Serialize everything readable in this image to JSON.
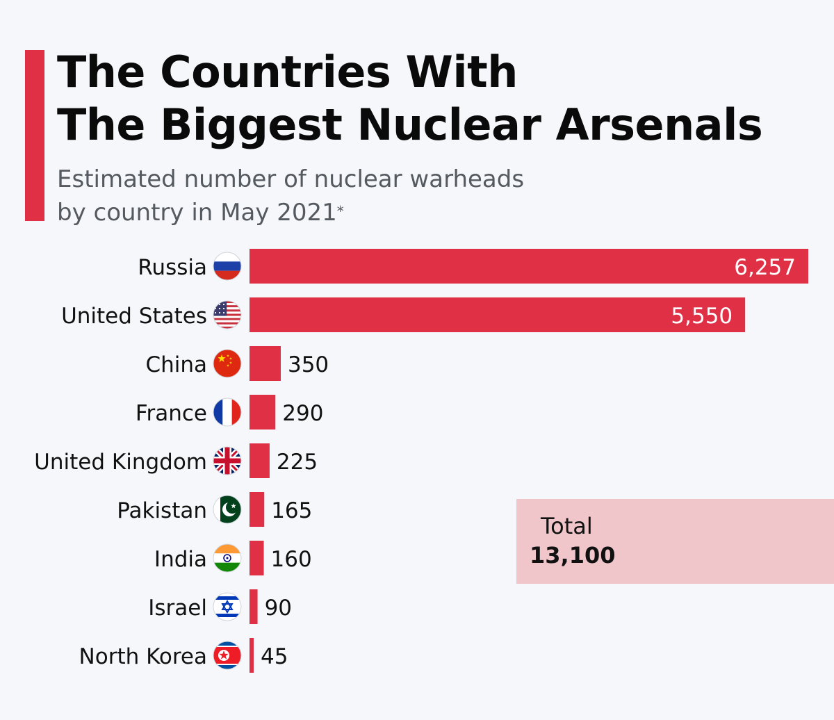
{
  "header": {
    "title_line1": "The Countries With",
    "title_line2": "The Biggest Nuclear Arsenals",
    "subtitle_line1": "Estimated number of nuclear warheads",
    "subtitle_line2": "by country in May 2021",
    "subtitle_mark": "*"
  },
  "colors": {
    "accent": "#e03046",
    "background": "#f5f7fa",
    "total_box": "#f0c6cb"
  },
  "total": {
    "label": "Total",
    "value": "13,100"
  },
  "chart_data": {
    "type": "bar",
    "orientation": "horizontal",
    "categories": [
      "Russia",
      "United States",
      "China",
      "France",
      "United Kingdom",
      "Pakistan",
      "India",
      "Israel",
      "North Korea"
    ],
    "values": [
      6257,
      5550,
      350,
      290,
      225,
      165,
      160,
      90,
      45
    ],
    "labels": [
      "6,257",
      "5,550",
      "350",
      "290",
      "225",
      "165",
      "160",
      "90",
      "45"
    ],
    "flags": [
      "russia-flag-icon",
      "usa-flag-icon",
      "china-flag-icon",
      "france-flag-icon",
      "uk-flag-icon",
      "pakistan-flag-icon",
      "india-flag-icon",
      "israel-flag-icon",
      "north-korea-flag-icon"
    ],
    "title": "The Countries With The Biggest Nuclear Arsenals",
    "xlabel": "",
    "ylabel": "",
    "xlim": [
      0,
      6257
    ],
    "grid": false,
    "legend": "none"
  }
}
